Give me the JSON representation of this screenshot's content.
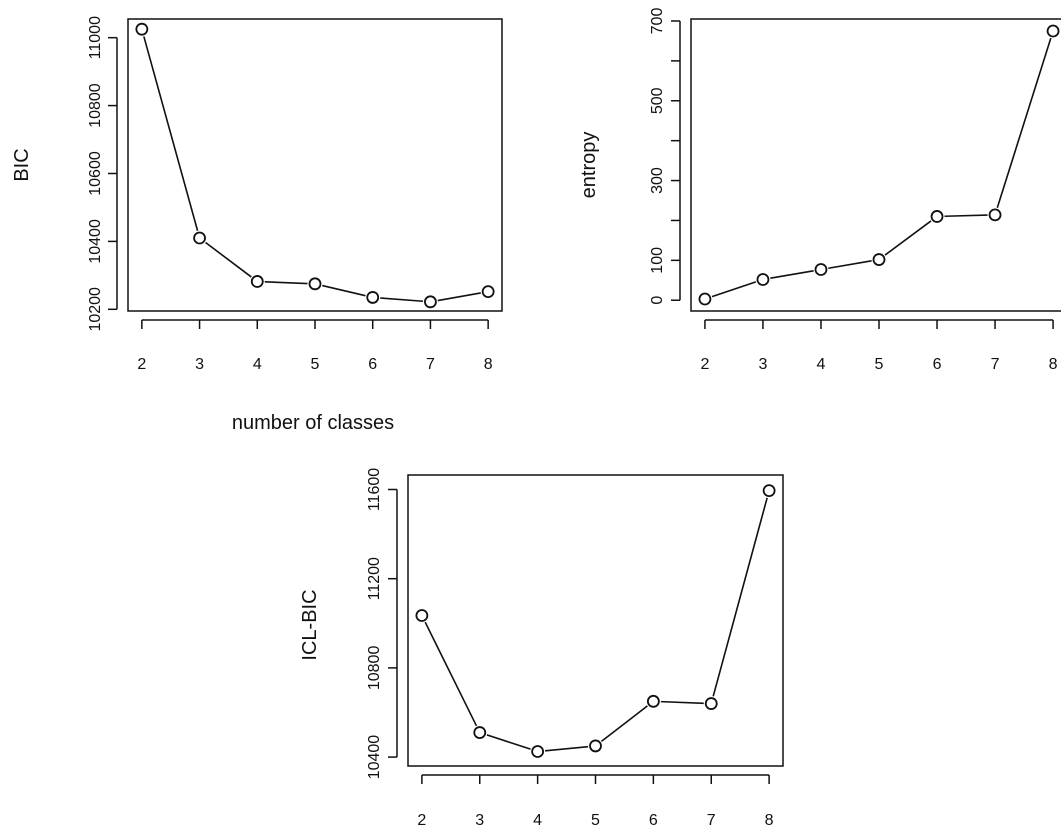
{
  "figure": {
    "shared_xlabel": "number of classes"
  },
  "chart_data": [
    {
      "type": "line",
      "markers": "open-circle",
      "title": "",
      "xlabel": "",
      "ylabel": "BIC",
      "x": [
        2,
        3,
        4,
        5,
        6,
        7,
        8
      ],
      "values": [
        11025,
        10410,
        10282,
        10275,
        10235,
        10222,
        10252
      ],
      "xticks": [
        "2",
        "3",
        "4",
        "5",
        "6",
        "7",
        "8"
      ],
      "yticks": [
        "10200",
        "10400",
        "10600",
        "10800",
        "11000"
      ],
      "xlim": [
        1.76,
        8.24
      ],
      "ylim": [
        10195,
        11055
      ]
    },
    {
      "type": "line",
      "markers": "open-circle",
      "title": "",
      "xlabel": "",
      "ylabel": "entropy",
      "x": [
        2,
        3,
        4,
        5,
        6,
        7,
        8
      ],
      "values": [
        3,
        52,
        77,
        102,
        210,
        214,
        675
      ],
      "xticks": [
        "2",
        "3",
        "4",
        "5",
        "6",
        "7",
        "8"
      ],
      "yticks": [
        "0",
        "100",
        "300",
        "500",
        "700"
      ],
      "yticks_unlabeled": [
        200,
        400,
        600
      ],
      "xlim": [
        1.76,
        8.24
      ],
      "ylim": [
        -27,
        705
      ]
    },
    {
      "type": "line",
      "markers": "open-circle",
      "title": "",
      "xlabel": "",
      "ylabel": "ICL-BIC",
      "x": [
        2,
        3,
        4,
        5,
        6,
        7,
        8
      ],
      "values": [
        11035,
        10510,
        10425,
        10450,
        10650,
        10640,
        11595
      ],
      "xticks": [
        "2",
        "3",
        "4",
        "5",
        "6",
        "7",
        "8"
      ],
      "yticks": [
        "10400",
        "10800",
        "11200",
        "11600"
      ],
      "xlim": [
        1.76,
        8.24
      ],
      "ylim": [
        10360,
        11665
      ]
    }
  ]
}
